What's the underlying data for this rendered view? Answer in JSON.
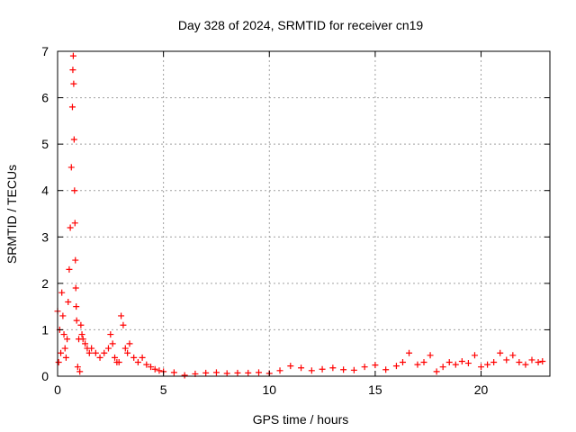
{
  "chart_data": {
    "type": "scatter",
    "title": "Day 328 of 2024, SRMTID for receiver cn19",
    "xlabel": "GPS time / hours",
    "ylabel": "SRMTID / TECUs",
    "xlim": [
      0,
      23.25
    ],
    "ylim": [
      0,
      7
    ],
    "xticks": [
      0,
      5,
      10,
      15,
      20
    ],
    "yticks": [
      0,
      1,
      2,
      3,
      4,
      5,
      6,
      7
    ],
    "grid": true,
    "marker": "+",
    "colors": {
      "series": "#ff0000",
      "grid": "#a0a0a0",
      "axis": "#000000"
    },
    "series": [
      {
        "x": [
          0.0,
          0.05,
          0.1,
          0.15,
          0.2,
          0.25,
          0.3,
          0.35,
          0.4,
          0.45,
          0.5,
          0.55,
          0.6,
          0.65,
          0.7,
          0.72,
          0.74,
          0.76,
          0.78,
          0.8,
          0.82,
          0.84,
          0.86,
          0.88,
          0.9,
          0.95,
          1.0,
          1.05,
          1.1,
          1.15,
          1.2,
          1.3,
          1.4,
          1.5,
          1.6,
          1.8,
          2.0,
          2.2,
          2.4,
          2.5,
          2.6,
          2.7,
          2.8,
          2.9,
          3.0,
          3.1,
          3.2,
          3.3,
          3.4,
          3.6,
          3.8,
          4.0,
          4.2,
          4.4,
          4.6,
          4.8,
          5.0,
          5.5,
          6.0,
          6.5,
          7.0,
          7.5,
          8.0,
          8.5,
          9.0,
          9.5,
          10.0,
          10.5,
          11.0,
          11.5,
          12.0,
          12.5,
          13.0,
          13.5,
          14.0,
          14.5,
          15.0,
          15.5,
          16.0,
          16.3,
          16.6,
          17.0,
          17.3,
          17.6,
          17.9,
          18.2,
          18.5,
          18.8,
          19.1,
          19.4,
          19.7,
          20.0,
          20.3,
          20.6,
          20.9,
          21.2,
          21.5,
          21.8,
          22.1,
          22.4,
          22.7,
          22.9
        ],
        "y": [
          1.4,
          0.3,
          1.0,
          0.5,
          1.8,
          1.3,
          0.9,
          0.6,
          0.4,
          0.8,
          1.6,
          2.3,
          3.2,
          4.5,
          5.8,
          6.6,
          6.9,
          6.3,
          5.1,
          4.0,
          3.3,
          2.5,
          1.9,
          1.5,
          1.2,
          0.2,
          0.8,
          0.1,
          1.1,
          0.9,
          0.8,
          0.7,
          0.6,
          0.5,
          0.6,
          0.5,
          0.4,
          0.5,
          0.6,
          0.9,
          0.7,
          0.4,
          0.3,
          0.3,
          1.3,
          1.1,
          0.6,
          0.5,
          0.7,
          0.4,
          0.3,
          0.4,
          0.25,
          0.2,
          0.15,
          0.12,
          0.1,
          0.08,
          0.02,
          0.05,
          0.07,
          0.08,
          0.06,
          0.07,
          0.07,
          0.08,
          0.06,
          0.12,
          0.22,
          0.18,
          0.12,
          0.15,
          0.18,
          0.14,
          0.13,
          0.2,
          0.24,
          0.14,
          0.22,
          0.3,
          0.5,
          0.25,
          0.3,
          0.45,
          0.1,
          0.2,
          0.3,
          0.25,
          0.32,
          0.28,
          0.45,
          0.2,
          0.25,
          0.3,
          0.5,
          0.35,
          0.45,
          0.3,
          0.25,
          0.35,
          0.3,
          0.32
        ]
      }
    ]
  }
}
